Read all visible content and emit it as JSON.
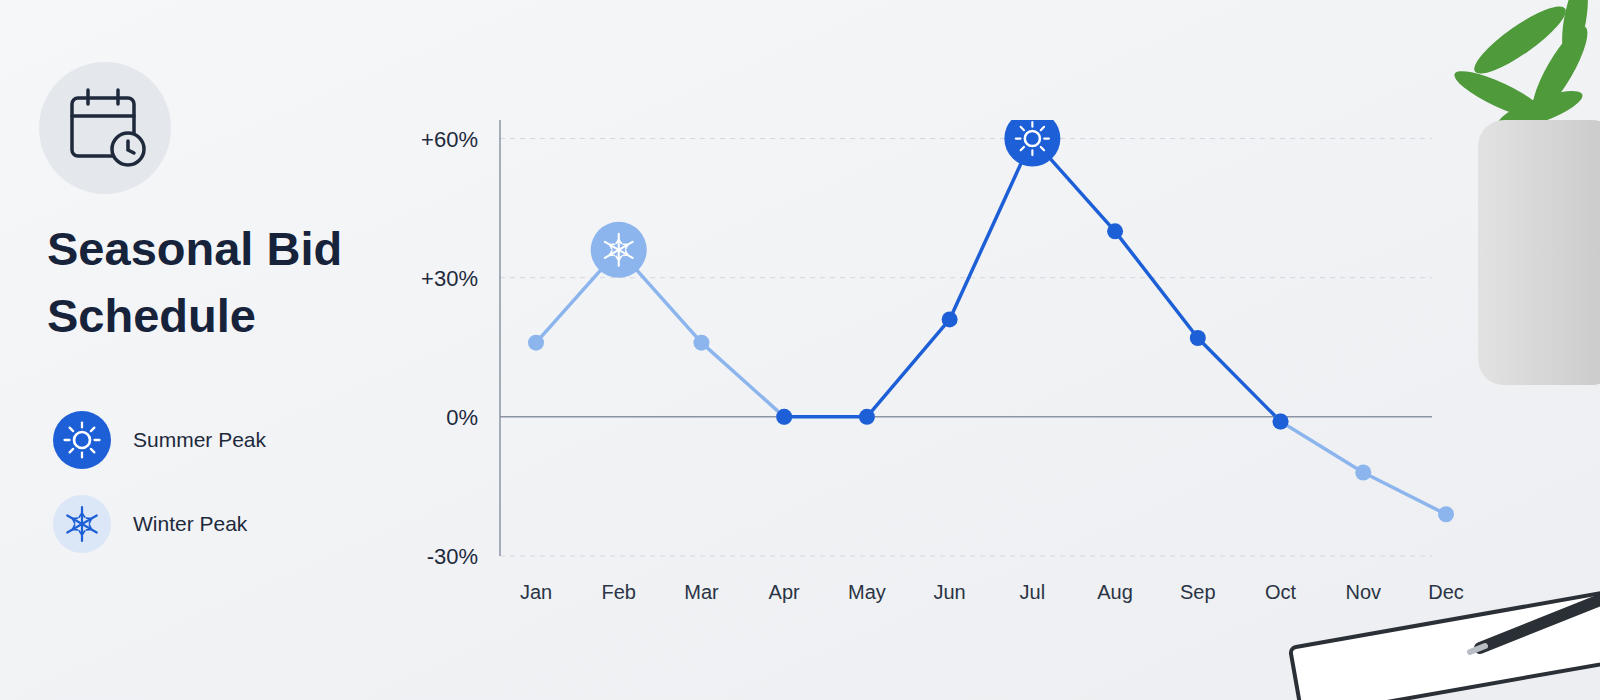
{
  "chart_data": {
    "type": "line",
    "title": "Seasonal Bid Schedule",
    "categories": [
      "Jan",
      "Feb",
      "Mar",
      "Apr",
      "May",
      "Jun",
      "Jul",
      "Aug",
      "Sep",
      "Oct",
      "Nov",
      "Dec"
    ],
    "series": [
      {
        "name": "Summer Peak",
        "color": "#1d5fd6",
        "marker": "circle",
        "line_style": "solid",
        "values": [
          null,
          null,
          null,
          0,
          0,
          21,
          60,
          40,
          17,
          -1,
          null,
          null
        ]
      },
      {
        "name": "Winter Peak",
        "color": "#8cb5ee",
        "marker": "circle",
        "line_style": "solid",
        "values": [
          16,
          36,
          16,
          0,
          null,
          null,
          null,
          null,
          null,
          -1,
          -12,
          -21
        ]
      }
    ],
    "ylim": [
      -30,
      64
    ],
    "yticks": [
      {
        "value": -30,
        "label": "-30%"
      },
      {
        "value": 0,
        "label": "0%"
      },
      {
        "value": 30,
        "label": "+30%"
      },
      {
        "value": 60,
        "label": "+60%"
      }
    ],
    "grid": true,
    "legend": "left"
  }
}
